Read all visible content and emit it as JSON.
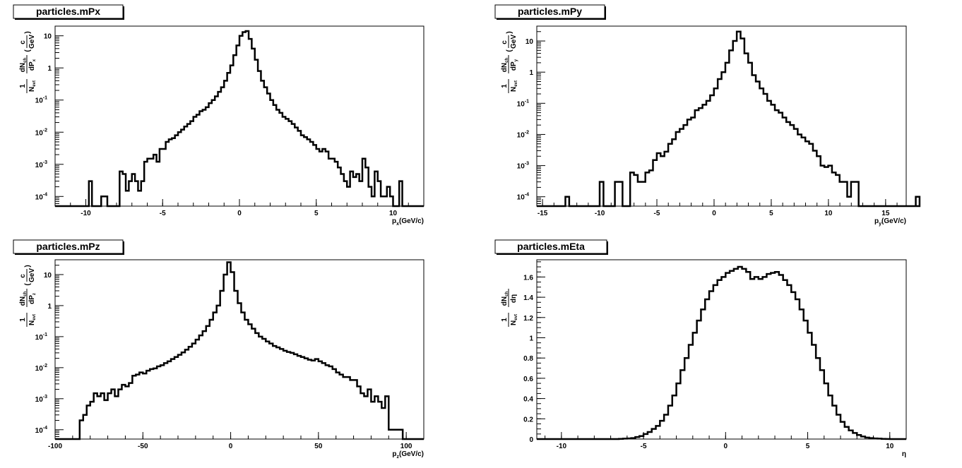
{
  "chart_data": [
    {
      "type": "step",
      "title": "particles.mPx",
      "xlabel": "p",
      "xlabel_sub": "x",
      "xlabel_unit": "(GeV/c)",
      "ylabel": "1/N_evt dN_ch/dP_x (c/GeV)",
      "ylabel_parts": {
        "n": "dN",
        "n_sub": "ch",
        "d": "dP",
        "d_sub": "x",
        "unit_num": "c",
        "unit_den": "GeV",
        "norm_num": "1",
        "norm_den": "N",
        "norm_den_sub": "evt"
      },
      "xlim": [
        -12,
        12
      ],
      "ylim": [
        5e-05,
        20
      ],
      "log_y": true,
      "xticks": [
        -10,
        -5,
        0,
        5,
        10
      ],
      "xtick_labels": [
        "-10",
        "-5",
        "0",
        "5",
        "10"
      ],
      "yticks": [
        0.0001,
        0.001,
        0.01,
        0.1,
        1,
        10
      ],
      "ytick_labels": [
        {
          "m": "10",
          "e": "-4"
        },
        {
          "m": "10",
          "e": "-3"
        },
        {
          "m": "10",
          "e": "-2"
        },
        {
          "m": "10",
          "e": "-1"
        },
        {
          "m": "1",
          "e": ""
        },
        {
          "m": "10",
          "e": ""
        }
      ],
      "bin_width": 0.2,
      "x_start": -9.8,
      "values": [
        0.0003,
        5e-05,
        5e-05,
        5e-05,
        0.0001,
        0.0001,
        5e-05,
        5e-05,
        5e-05,
        5e-05,
        0.0006,
        0.0005,
        0.00015,
        0.0003,
        0.0005,
        0.0003,
        0.00015,
        0.0003,
        0.0012,
        0.0015,
        0.0015,
        0.002,
        0.0012,
        0.003,
        0.003,
        0.005,
        0.006,
        0.0065,
        0.008,
        0.01,
        0.012,
        0.015,
        0.018,
        0.022,
        0.03,
        0.035,
        0.045,
        0.05,
        0.06,
        0.08,
        0.1,
        0.13,
        0.18,
        0.25,
        0.4,
        0.7,
        1.2,
        2.5,
        5,
        10,
        13,
        14,
        8,
        4,
        1.8,
        0.8,
        0.4,
        0.25,
        0.16,
        0.1,
        0.07,
        0.05,
        0.04,
        0.03,
        0.026,
        0.022,
        0.018,
        0.014,
        0.011,
        0.008,
        0.007,
        0.006,
        0.005,
        0.004,
        0.003,
        0.0025,
        0.003,
        0.0025,
        0.0015,
        0.0015,
        0.0012,
        0.0008,
        0.0005,
        0.0003,
        0.0002,
        0.0006,
        0.0004,
        0.0005,
        0.0003,
        0.0015,
        0.0008,
        0.0002,
        0.0001,
        0.0006,
        0.0003,
        0.0001,
        0.0001,
        0.0002,
        0.0001,
        5e-05,
        5e-05,
        0.0003
      ]
    },
    {
      "type": "step",
      "title": "particles.mPy",
      "xlabel": "p",
      "xlabel_sub": "y",
      "xlabel_unit": "(GeV/c)",
      "ylabel": "1/N_evt dN_ch/dP_y (c/GeV)",
      "ylabel_parts": {
        "n": "dN",
        "n_sub": "ch",
        "d": "dP",
        "d_sub": "y",
        "unit_num": "c",
        "unit_den": "GeV",
        "norm_num": "1",
        "norm_den": "N",
        "norm_den_sub": "evt"
      },
      "xlim": [
        -15.5,
        16.8
      ],
      "ylim": [
        5e-05,
        30
      ],
      "log_y": true,
      "xticks": [
        -15,
        -10,
        -5,
        0,
        5,
        10,
        15
      ],
      "xtick_labels": [
        "-15",
        "-10",
        "-5",
        "0",
        "5",
        "10",
        "15"
      ],
      "yticks": [
        0.0001,
        0.001,
        0.01,
        0.1,
        1,
        10
      ],
      "ytick_labels": [
        {
          "m": "10",
          "e": "-4"
        },
        {
          "m": "10",
          "e": "-3"
        },
        {
          "m": "10",
          "e": "-2"
        },
        {
          "m": "10",
          "e": "-1"
        },
        {
          "m": "1",
          "e": ""
        },
        {
          "m": "10",
          "e": ""
        }
      ],
      "bin_width": 0.333,
      "x_start": -13,
      "values": [
        0.0001,
        5e-05,
        5e-05,
        5e-05,
        5e-05,
        5e-05,
        5e-05,
        5e-05,
        5e-05,
        0.0003,
        5e-05,
        5e-05,
        5e-05,
        0.0003,
        0.0003,
        5e-05,
        5e-05,
        0.0006,
        0.0005,
        0.0003,
        0.0003,
        0.0006,
        0.0007,
        0.0015,
        0.0025,
        0.002,
        0.0028,
        0.005,
        0.007,
        0.012,
        0.015,
        0.02,
        0.03,
        0.035,
        0.06,
        0.07,
        0.09,
        0.12,
        0.18,
        0.3,
        0.6,
        1.0,
        2.0,
        5,
        10,
        20,
        12,
        4,
        2,
        0.8,
        0.5,
        0.3,
        0.2,
        0.12,
        0.09,
        0.06,
        0.05,
        0.035,
        0.025,
        0.02,
        0.015,
        0.01,
        0.008,
        0.006,
        0.005,
        0.003,
        0.002,
        0.001,
        0.0009,
        0.001,
        0.0006,
        0.0005,
        0.0003,
        0.0003,
        0.0001,
        0.0003,
        0.0003,
        5e-05,
        5e-05,
        5e-05,
        5e-05,
        5e-05,
        5e-05,
        5e-05,
        5e-05,
        5e-05,
        5e-05,
        5e-05,
        5e-05,
        5e-05,
        5e-05,
        5e-05,
        0.0001
      ]
    },
    {
      "type": "step",
      "title": "particles.mPz",
      "xlabel": "p",
      "xlabel_sub": "z",
      "xlabel_unit": "(GeV/c)",
      "ylabel": "1/N_evt dN_ch/dP_z (c/GeV)",
      "ylabel_parts": {
        "n": "dN",
        "n_sub": "ch",
        "d": "dP",
        "d_sub": "z",
        "unit_num": "c",
        "unit_den": "GeV",
        "norm_num": "1",
        "norm_den": "N",
        "norm_den_sub": "evt"
      },
      "xlim": [
        -100,
        110
      ],
      "ylim": [
        5e-05,
        30
      ],
      "log_y": true,
      "xticks": [
        -100,
        -50,
        0,
        50,
        100
      ],
      "xtick_labels": [
        "-100",
        "-50",
        "0",
        "50",
        "100"
      ],
      "yticks": [
        0.0001,
        0.001,
        0.01,
        0.1,
        1,
        10
      ],
      "ytick_labels": [
        {
          "m": "10",
          "e": "-4"
        },
        {
          "m": "10",
          "e": "-3"
        },
        {
          "m": "10",
          "e": "-2"
        },
        {
          "m": "10",
          "e": "-1"
        },
        {
          "m": "1",
          "e": ""
        },
        {
          "m": "10",
          "e": ""
        }
      ],
      "bin_width": 2,
      "x_start": -86,
      "values": [
        0.0002,
        0.0003,
        0.0006,
        0.0008,
        0.0015,
        0.0012,
        0.0015,
        0.0009,
        0.0015,
        0.002,
        0.0012,
        0.002,
        0.0028,
        0.0025,
        0.0032,
        0.0055,
        0.006,
        0.007,
        0.0065,
        0.008,
        0.009,
        0.0095,
        0.011,
        0.012,
        0.014,
        0.016,
        0.019,
        0.022,
        0.026,
        0.031,
        0.038,
        0.047,
        0.06,
        0.08,
        0.11,
        0.15,
        0.22,
        0.35,
        0.6,
        1.0,
        3.0,
        10.0,
        25,
        12,
        3,
        1.2,
        0.6,
        0.35,
        0.25,
        0.18,
        0.13,
        0.1,
        0.085,
        0.07,
        0.06,
        0.05,
        0.045,
        0.04,
        0.035,
        0.032,
        0.03,
        0.027,
        0.024,
        0.022,
        0.02,
        0.018,
        0.017,
        0.019,
        0.016,
        0.014,
        0.012,
        0.011,
        0.009,
        0.007,
        0.006,
        0.005,
        0.005,
        0.004,
        0.004,
        0.0025,
        0.0015,
        0.0012,
        0.002,
        0.0008,
        0.0012,
        0.0008,
        0.0005,
        0.0012,
        0.0001,
        0.0001,
        0.0001,
        0.0001
      ]
    },
    {
      "type": "step",
      "title": "particles.mEta",
      "xlabel": "η",
      "xlabel_sub": "",
      "xlabel_unit": "",
      "ylabel": "1/N_evt dN_ch/dη",
      "ylabel_parts": {
        "n": "dN",
        "n_sub": "ch",
        "d": "dη",
        "d_sub": "",
        "unit_num": "",
        "unit_den": "",
        "norm_num": "1",
        "norm_den": "N",
        "norm_den_sub": "evt"
      },
      "xlim": [
        -11.5,
        11
      ],
      "ylim": [
        0,
        1.77
      ],
      "log_y": false,
      "xticks": [
        -10,
        -5,
        0,
        5,
        10
      ],
      "xtick_labels": [
        "-10",
        "-5",
        "0",
        "5",
        "10"
      ],
      "yticks": [
        0,
        0.2,
        0.4,
        0.6,
        0.8,
        1,
        1.2,
        1.4,
        1.6
      ],
      "ytick_labels": [
        {
          "m": "0",
          "e": ""
        },
        {
          "m": "0.2",
          "e": ""
        },
        {
          "m": "0.4",
          "e": ""
        },
        {
          "m": "0.6",
          "e": ""
        },
        {
          "m": "0.8",
          "e": ""
        },
        {
          "m": "1",
          "e": ""
        },
        {
          "m": "1.2",
          "e": ""
        },
        {
          "m": "1.4",
          "e": ""
        },
        {
          "m": "1.6",
          "e": ""
        }
      ],
      "bin_width": 0.25,
      "x_start": -6.5,
      "values": [
        0.002,
        0.004,
        0.006,
        0.01,
        0.02,
        0.03,
        0.05,
        0.07,
        0.1,
        0.13,
        0.18,
        0.24,
        0.33,
        0.43,
        0.55,
        0.68,
        0.8,
        0.93,
        1.05,
        1.17,
        1.28,
        1.38,
        1.46,
        1.52,
        1.57,
        1.6,
        1.64,
        1.66,
        1.68,
        1.7,
        1.68,
        1.65,
        1.58,
        1.6,
        1.58,
        1.6,
        1.63,
        1.64,
        1.65,
        1.62,
        1.57,
        1.52,
        1.45,
        1.38,
        1.28,
        1.17,
        1.05,
        0.93,
        0.8,
        0.68,
        0.55,
        0.43,
        0.33,
        0.24,
        0.17,
        0.12,
        0.085,
        0.06,
        0.04,
        0.025,
        0.015,
        0.01,
        0.006,
        0.004,
        0.002,
        0.001
      ]
    }
  ]
}
